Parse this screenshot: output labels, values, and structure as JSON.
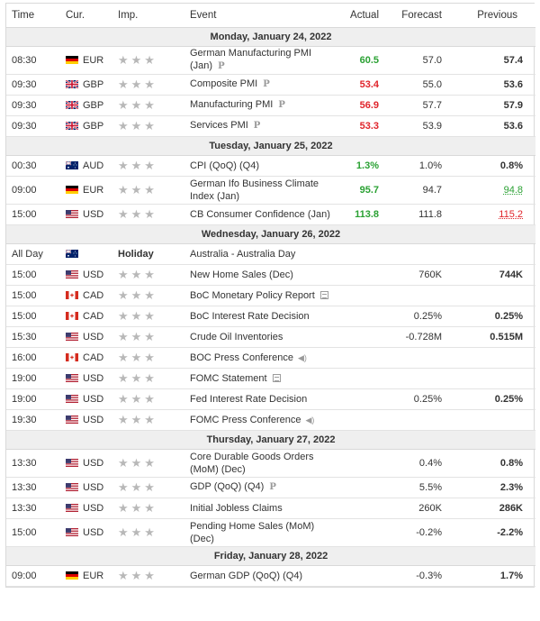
{
  "headers": {
    "time": "Time",
    "cur": "Cur.",
    "imp": "Imp.",
    "event": "Event",
    "actual": "Actual",
    "forecast": "Forecast",
    "previous": "Previous"
  },
  "stars": "★★★",
  "days": [
    {
      "date": "Monday, January 24, 2022",
      "rows": [
        {
          "time": "08:30",
          "flag": "de",
          "cur": "EUR",
          "event": "German Manufacturing PMI (Jan)",
          "icon": "p",
          "actual": "60.5",
          "actual_color": "green",
          "forecast": "57.0",
          "previous": "57.4",
          "prev_style": "bold",
          "tall": true
        },
        {
          "time": "09:30",
          "flag": "gb",
          "cur": "GBP",
          "event": "Composite PMI",
          "icon": "p",
          "actual": "53.4",
          "actual_color": "red",
          "forecast": "55.0",
          "previous": "53.6",
          "prev_style": "bold"
        },
        {
          "time": "09:30",
          "flag": "gb",
          "cur": "GBP",
          "event": "Manufacturing PMI",
          "icon": "p",
          "actual": "56.9",
          "actual_color": "red",
          "forecast": "57.7",
          "previous": "57.9",
          "prev_style": "bold"
        },
        {
          "time": "09:30",
          "flag": "gb",
          "cur": "GBP",
          "event": "Services PMI",
          "icon": "p",
          "actual": "53.3",
          "actual_color": "red",
          "forecast": "53.9",
          "previous": "53.6",
          "prev_style": "bold"
        }
      ]
    },
    {
      "date": "Tuesday, January 25, 2022",
      "rows": [
        {
          "time": "00:30",
          "flag": "au",
          "cur": "AUD",
          "event": "CPI (QoQ) (Q4)",
          "icon": "",
          "actual": "1.3%",
          "actual_color": "green",
          "forecast": "1.0%",
          "previous": "0.8%",
          "prev_style": "bold"
        },
        {
          "time": "09:00",
          "flag": "de",
          "cur": "EUR",
          "event": "German Ifo Business Climate Index (Jan)",
          "icon": "",
          "actual": "95.7",
          "actual_color": "green",
          "forecast": "94.7",
          "previous": "94.8",
          "prev_style": "green-u",
          "tall": true
        },
        {
          "time": "15:00",
          "flag": "us",
          "cur": "USD",
          "event": "CB Consumer Confidence (Jan)",
          "icon": "",
          "actual": "113.8",
          "actual_color": "green",
          "forecast": "111.8",
          "previous": "115.2",
          "prev_style": "red-u"
        }
      ]
    },
    {
      "date": "Wednesday, January 26, 2022",
      "rows": [
        {
          "time": "All Day",
          "flag": "au",
          "cur": "",
          "holiday": "Holiday",
          "event": "Australia - Australia Day",
          "icon": "",
          "actual": "",
          "forecast": "",
          "previous": ""
        },
        {
          "time": "15:00",
          "flag": "us",
          "cur": "USD",
          "event": "New Home Sales (Dec)",
          "icon": "",
          "actual": "",
          "forecast": "760K",
          "previous": "744K",
          "prev_style": "bold"
        },
        {
          "time": "15:00",
          "flag": "ca",
          "cur": "CAD",
          "event": "BoC Monetary Policy Report",
          "icon": "doc",
          "actual": "",
          "forecast": "",
          "previous": ""
        },
        {
          "time": "15:00",
          "flag": "ca",
          "cur": "CAD",
          "event": "BoC Interest Rate Decision",
          "icon": "",
          "actual": "",
          "forecast": "0.25%",
          "previous": "0.25%",
          "prev_style": "bold"
        },
        {
          "time": "15:30",
          "flag": "us",
          "cur": "USD",
          "event": "Crude Oil Inventories",
          "icon": "",
          "actual": "",
          "forecast": "-0.728M",
          "previous": "0.515M",
          "prev_style": "bold"
        },
        {
          "time": "16:00",
          "flag": "ca",
          "cur": "CAD",
          "event": "BOC Press Conference",
          "icon": "spk",
          "actual": "",
          "forecast": "",
          "previous": ""
        },
        {
          "time": "19:00",
          "flag": "us",
          "cur": "USD",
          "event": "FOMC Statement",
          "icon": "doc",
          "actual": "",
          "forecast": "",
          "previous": ""
        },
        {
          "time": "19:00",
          "flag": "us",
          "cur": "USD",
          "event": "Fed Interest Rate Decision",
          "icon": "",
          "actual": "",
          "forecast": "0.25%",
          "previous": "0.25%",
          "prev_style": "bold"
        },
        {
          "time": "19:30",
          "flag": "us",
          "cur": "USD",
          "event": "FOMC Press Conference",
          "icon": "spk",
          "actual": "",
          "forecast": "",
          "previous": ""
        }
      ]
    },
    {
      "date": "Thursday, January 27, 2022",
      "rows": [
        {
          "time": "13:30",
          "flag": "us",
          "cur": "USD",
          "event": "Core Durable Goods Orders (MoM) (Dec)",
          "icon": "",
          "actual": "",
          "forecast": "0.4%",
          "previous": "0.8%",
          "prev_style": "bold",
          "tall": true
        },
        {
          "time": "13:30",
          "flag": "us",
          "cur": "USD",
          "event": "GDP (QoQ) (Q4)",
          "icon": "p",
          "actual": "",
          "forecast": "5.5%",
          "previous": "2.3%",
          "prev_style": "bold"
        },
        {
          "time": "13:30",
          "flag": "us",
          "cur": "USD",
          "event": "Initial Jobless Claims",
          "icon": "",
          "actual": "",
          "forecast": "260K",
          "previous": "286K",
          "prev_style": "bold"
        },
        {
          "time": "15:00",
          "flag": "us",
          "cur": "USD",
          "event": "Pending Home Sales (MoM) (Dec)",
          "icon": "",
          "actual": "",
          "forecast": "-0.2%",
          "previous": "-2.2%",
          "prev_style": "bold",
          "tall": true
        }
      ]
    },
    {
      "date": "Friday, January 28, 2022",
      "rows": [
        {
          "time": "09:00",
          "flag": "de",
          "cur": "EUR",
          "event": "German GDP (QoQ) (Q4)",
          "icon": "",
          "actual": "",
          "forecast": "-0.3%",
          "previous": "1.7%",
          "prev_style": "bold"
        }
      ]
    }
  ]
}
